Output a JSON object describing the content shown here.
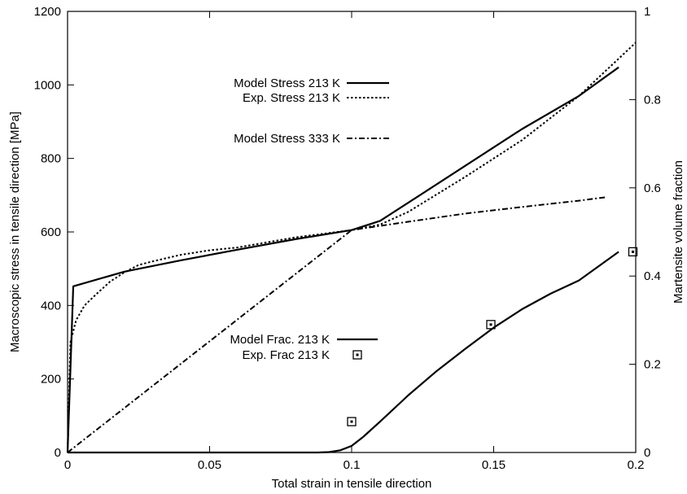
{
  "chart_data": {
    "type": "line",
    "xlabel": "Total strain in tensile direction",
    "ylabel": "Macroscopic stress in tensile direction [MPa]",
    "y2label": "Martensite volume fraction",
    "xlim": [
      0,
      0.2
    ],
    "ylim": [
      0,
      1200
    ],
    "y2lim": [
      0,
      1
    ],
    "x_ticks": [
      "0",
      "0.05",
      "0.1",
      "0.15",
      "0.2"
    ],
    "y_ticks": [
      "0",
      "200",
      "400",
      "600",
      "800",
      "1000",
      "1200"
    ],
    "y2_ticks": [
      "0",
      "0.2",
      "0.4",
      "0.6",
      "0.8",
      "1"
    ],
    "grid": false,
    "legend_position": "left, in two groups (upper and lower)",
    "series": [
      {
        "name": "Model Stress 213 K",
        "axis": "left",
        "style": "solid",
        "x": [
          0,
          0.002,
          0.02,
          0.04,
          0.06,
          0.08,
          0.1,
          0.11,
          0.12,
          0.14,
          0.16,
          0.18,
          0.194
        ],
        "y": [
          0,
          452,
          492,
          523,
          552,
          580,
          605,
          630,
          680,
          780,
          880,
          970,
          1048
        ]
      },
      {
        "name": "Exp. Stress 213 K",
        "axis": "left",
        "style": "dotted",
        "x": [
          0,
          0.001,
          0.003,
          0.006,
          0.01,
          0.015,
          0.02,
          0.025,
          0.03,
          0.04,
          0.05,
          0.06,
          0.08,
          0.1,
          0.11,
          0.12,
          0.14,
          0.16,
          0.18,
          0.2
        ],
        "y": [
          0,
          300,
          360,
          400,
          430,
          465,
          490,
          510,
          520,
          538,
          550,
          558,
          585,
          605,
          620,
          655,
          750,
          850,
          970,
          1115
        ]
      },
      {
        "name": "Model Stress 333 K",
        "axis": "left",
        "style": "dash-dot",
        "x": [
          0,
          0.1,
          0.12,
          0.14,
          0.16,
          0.18,
          0.19
        ],
        "y": [
          0,
          605,
          628,
          650,
          668,
          685,
          695
        ]
      },
      {
        "name": "Model Frac. 213 K",
        "axis": "right",
        "style": "solid",
        "x": [
          0,
          0.088,
          0.092,
          0.096,
          0.1,
          0.104,
          0.11,
          0.12,
          0.13,
          0.14,
          0.15,
          0.16,
          0.17,
          0.18,
          0.194
        ],
        "y": [
          0,
          0,
          0.001,
          0.005,
          0.015,
          0.035,
          0.07,
          0.13,
          0.185,
          0.235,
          0.283,
          0.325,
          0.36,
          0.39,
          0.455
        ]
      },
      {
        "name": "Exp. Frac 213 K",
        "axis": "right",
        "style": "square-markers",
        "x": [
          0.1,
          0.149,
          0.199
        ],
        "y": [
          0.07,
          0.29,
          0.455
        ]
      }
    ]
  }
}
